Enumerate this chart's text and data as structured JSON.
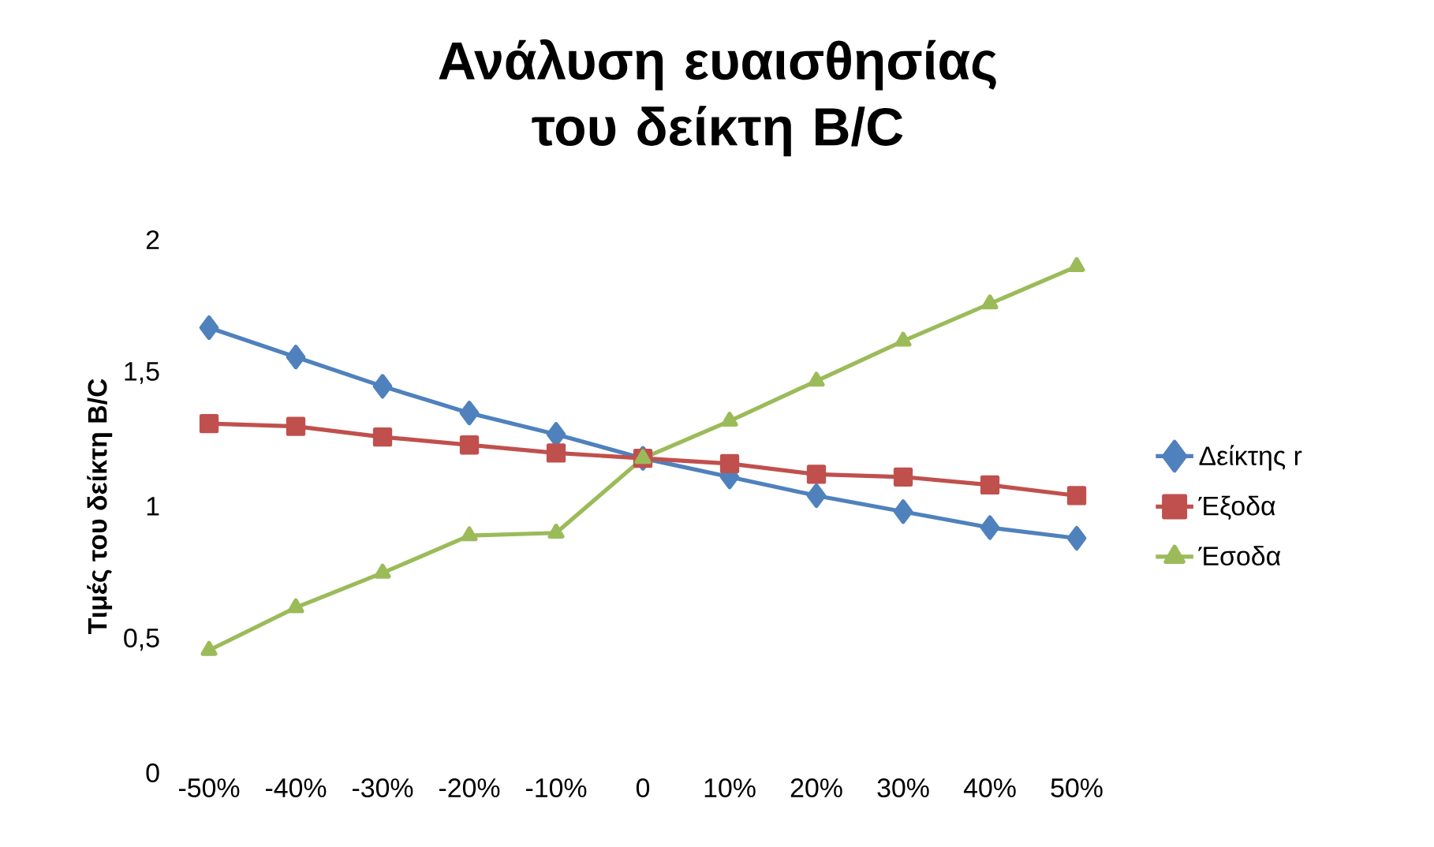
{
  "chart_data": {
    "type": "line",
    "title": "Ανάλυση ευαισθησίας του δείκτη B/C",
    "ylabel": "Τιμές του δείκτη B/C",
    "categories": [
      "-50%",
      "-40%",
      "-30%",
      "-20%",
      "-10%",
      "0",
      "10%",
      "20%",
      "30%",
      "40%",
      "50%"
    ],
    "series": [
      {
        "name": "Δείκτης r",
        "color": "#4f81bd",
        "marker": "diamond",
        "values": [
          1.67,
          1.56,
          1.45,
          1.35,
          1.27,
          1.18,
          1.11,
          1.04,
          0.98,
          0.92,
          0.88
        ]
      },
      {
        "name": "Έξοδα",
        "color": "#c0504d",
        "marker": "square",
        "values": [
          1.31,
          1.3,
          1.26,
          1.23,
          1.2,
          1.18,
          1.16,
          1.12,
          1.11,
          1.08,
          1.04
        ]
      },
      {
        "name": "Έσοδα",
        "color": "#9bbb59",
        "marker": "triangle",
        "values": [
          0.46,
          0.62,
          0.75,
          0.89,
          0.9,
          1.18,
          1.32,
          1.47,
          1.62,
          1.76,
          1.9
        ]
      }
    ],
    "ylim": [
      0,
      2
    ],
    "yticks": [
      0,
      {
        "value": 0.5,
        "label": "0,5"
      },
      1,
      {
        "value": 1.5,
        "label": "1,5"
      },
      2
    ],
    "grid": false,
    "legend": "right"
  }
}
